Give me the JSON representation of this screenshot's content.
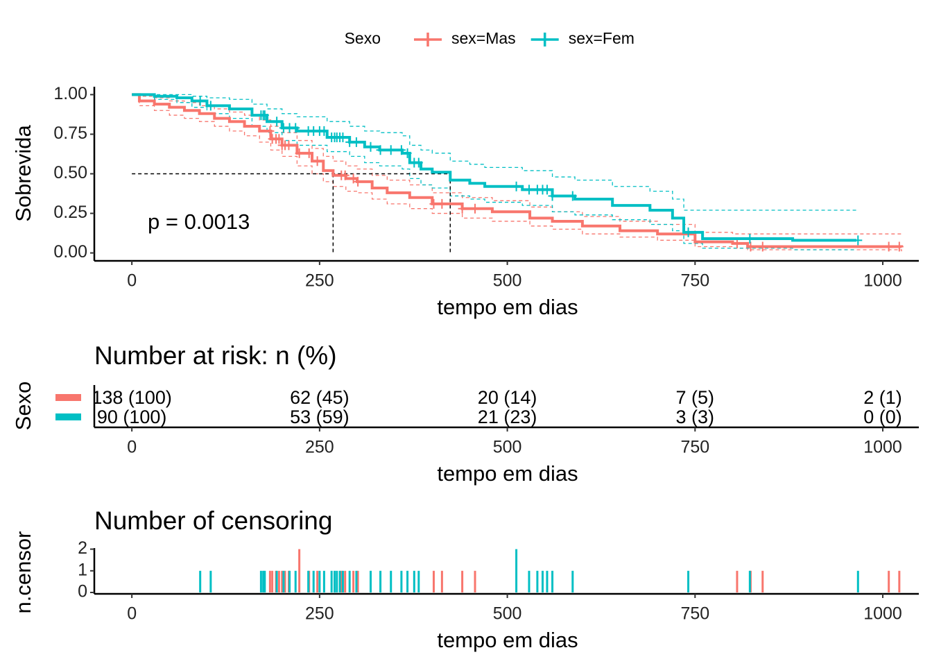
{
  "chart_data": [
    {
      "type": "survival",
      "legend_title": "Sexo",
      "xlabel": "tempo em dias",
      "ylabel": "Sobrevida",
      "annotation": "p = 0.0013",
      "xlim": [
        -50,
        1048
      ],
      "ylim": [
        -0.05,
        1.05
      ],
      "xticks": [
        0,
        250,
        500,
        750,
        1000
      ],
      "yticks": [
        {
          "value": 0,
          "label": "0.00"
        },
        {
          "value": 0.25,
          "label": "0.25"
        },
        {
          "value": 0.5,
          "label": "0.50"
        },
        {
          "value": 0.75,
          "label": "0.75"
        },
        {
          "value": 1,
          "label": "1.00"
        }
      ],
      "median_line": {
        "y": 0.5,
        "x": [
          268,
          424
        ]
      },
      "series": [
        {
          "name": "sex=Mas",
          "color": "#F8766D",
          "x": [
            0,
            10,
            30,
            50,
            70,
            90,
            110,
            130,
            150,
            170,
            185,
            200,
            220,
            240,
            255,
            268,
            285,
            300,
            320,
            340,
            370,
            400,
            440,
            480,
            530,
            560,
            600,
            650,
            700,
            750,
            800,
            820,
            1025
          ],
          "values": [
            1,
            0.96,
            0.94,
            0.92,
            0.9,
            0.88,
            0.85,
            0.83,
            0.8,
            0.77,
            0.72,
            0.68,
            0.63,
            0.58,
            0.52,
            0.49,
            0.47,
            0.45,
            0.41,
            0.38,
            0.35,
            0.31,
            0.28,
            0.26,
            0.22,
            0.2,
            0.17,
            0.14,
            0.12,
            0.07,
            0.06,
            0.04,
            0.035
          ],
          "upper": [
            1,
            0.99,
            0.98,
            0.96,
            0.95,
            0.93,
            0.91,
            0.89,
            0.87,
            0.84,
            0.8,
            0.76,
            0.71,
            0.66,
            0.61,
            0.58,
            0.55,
            0.53,
            0.49,
            0.46,
            0.43,
            0.38,
            0.35,
            0.33,
            0.29,
            0.26,
            0.23,
            0.2,
            0.18,
            0.13,
            0.12,
            0.12,
            0.12
          ],
          "lower": [
            1,
            0.93,
            0.9,
            0.87,
            0.85,
            0.83,
            0.8,
            0.77,
            0.74,
            0.7,
            0.65,
            0.61,
            0.55,
            0.5,
            0.45,
            0.42,
            0.39,
            0.38,
            0.34,
            0.31,
            0.28,
            0.25,
            0.22,
            0.2,
            0.17,
            0.15,
            0.12,
            0.1,
            0.08,
            0.04,
            0.03,
            0.02,
            0.01
          ]
        },
        {
          "name": "sex=Fem",
          "color": "#00BFC4",
          "x": [
            0,
            30,
            60,
            80,
            100,
            130,
            160,
            180,
            200,
            220,
            260,
            290,
            310,
            330,
            360,
            370,
            385,
            400,
            424,
            450,
            470,
            520,
            560,
            590,
            640,
            690,
            720,
            735,
            760,
            880,
            965
          ],
          "values": [
            1,
            0.99,
            0.98,
            0.96,
            0.93,
            0.91,
            0.87,
            0.83,
            0.79,
            0.77,
            0.73,
            0.7,
            0.67,
            0.65,
            0.63,
            0.57,
            0.53,
            0.51,
            0.46,
            0.44,
            0.42,
            0.4,
            0.36,
            0.34,
            0.3,
            0.27,
            0.22,
            0.13,
            0.09,
            0.08,
            0.08
          ],
          "upper": [
            1,
            1,
            1,
            0.99,
            0.98,
            0.97,
            0.94,
            0.91,
            0.88,
            0.86,
            0.83,
            0.8,
            0.77,
            0.76,
            0.74,
            0.68,
            0.65,
            0.63,
            0.58,
            0.56,
            0.54,
            0.52,
            0.48,
            0.46,
            0.42,
            0.39,
            0.34,
            0.27,
            0.27,
            0.27,
            0.27
          ],
          "lower": [
            1,
            0.97,
            0.95,
            0.92,
            0.88,
            0.85,
            0.8,
            0.76,
            0.71,
            0.68,
            0.64,
            0.61,
            0.57,
            0.55,
            0.53,
            0.47,
            0.43,
            0.41,
            0.36,
            0.34,
            0.32,
            0.3,
            0.26,
            0.24,
            0.21,
            0.18,
            0.14,
            0.06,
            0.03,
            0.02,
            0.02
          ]
        }
      ]
    },
    {
      "type": "risk_table",
      "title": "Number at risk: n (%)",
      "ylabel": "Sexo",
      "xlabel": "tempo em dias",
      "xlim": [
        -50,
        1048
      ],
      "xticks": [
        0,
        250,
        500,
        750,
        1000
      ],
      "times": [
        0,
        250,
        500,
        750,
        1000
      ],
      "rows": [
        {
          "color": "#F8766D",
          "values": [
            "138 (100)",
            "62 (45)",
            "20 (14)",
            "7 (5)",
            "2 (1)"
          ]
        },
        {
          "color": "#00BFC4",
          "values": [
            "90 (100)",
            "53 (59)",
            "21 (23)",
            "3 (3)",
            "0 (0)"
          ]
        }
      ]
    },
    {
      "type": "censor_bar",
      "title": "Number of censoring",
      "ylabel": "n.censor",
      "xlabel": "tempo em dias",
      "xlim": [
        -50,
        1048
      ],
      "ylim": [
        0,
        2.05
      ],
      "xticks": [
        0,
        250,
        500,
        750,
        1000
      ],
      "yticks": [
        0,
        1,
        2
      ],
      "series": [
        {
          "color": "#F8766D",
          "x": [
            184,
            187,
            192,
            196,
            200,
            204,
            209,
            223,
            236,
            247,
            279,
            284,
            295,
            301,
            402,
            413,
            440,
            457,
            806,
            824,
            840,
            1008,
            1022
          ],
          "values": [
            1,
            1,
            1,
            1,
            1,
            1,
            1,
            2,
            1,
            1,
            1,
            1,
            1,
            1,
            1,
            1,
            1,
            1,
            1,
            1,
            1,
            1,
            1
          ]
        },
        {
          "color": "#00BFC4",
          "x": [
            91,
            105,
            172,
            175,
            177,
            193,
            202,
            210,
            218,
            235,
            242,
            250,
            256,
            266,
            270,
            273,
            277,
            281,
            290,
            299,
            318,
            331,
            345,
            359,
            367,
            376,
            382,
            512,
            529,
            540,
            547,
            553,
            560,
            587,
            741,
            823,
            967
          ],
          "values": [
            1,
            1,
            1,
            1,
            1,
            1,
            1,
            1,
            1,
            1,
            1,
            1,
            1,
            1,
            1,
            1,
            1,
            1,
            1,
            1,
            1,
            1,
            1,
            1,
            1,
            1,
            1,
            2,
            1,
            1,
            1,
            1,
            1,
            1,
            1,
            1,
            1
          ]
        }
      ]
    }
  ]
}
